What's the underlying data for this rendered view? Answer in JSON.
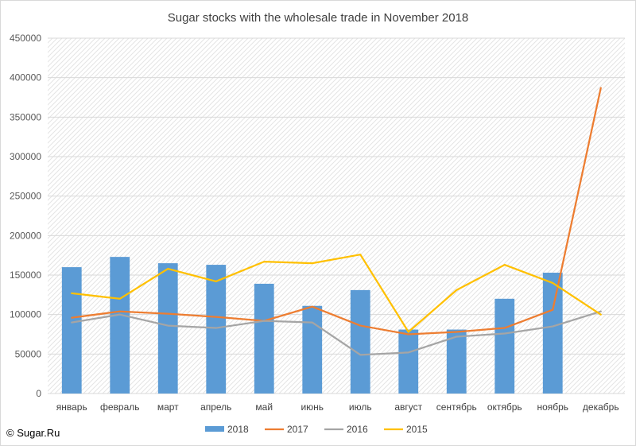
{
  "chart_data": {
    "type": "bar",
    "title": "Sugar stocks with the wholesale trade in November 2018",
    "categories": [
      "январь",
      "февраль",
      "март",
      "апрель",
      "май",
      "июнь",
      "июль",
      "август",
      "сентябрь",
      "октябрь",
      "ноябрь",
      "декабрь"
    ],
    "y_ticks": [
      "0",
      "50000",
      "100000",
      "150000",
      "200000",
      "250000",
      "300000",
      "350000",
      "400000",
      "450000"
    ],
    "ylim": [
      0,
      450000
    ],
    "grid": "hatched",
    "legend_position": "bottom",
    "series": [
      {
        "name": "2018",
        "type": "bar",
        "color": "#5b9bd5",
        "values": [
          160000,
          173000,
          165000,
          163000,
          139000,
          111000,
          131000,
          81000,
          81000,
          120000,
          153000,
          null
        ]
      },
      {
        "name": "2017",
        "type": "line",
        "color": "#ed7d31",
        "values": [
          96000,
          104000,
          101000,
          97000,
          92000,
          110000,
          86000,
          75000,
          78000,
          83000,
          106000,
          387000
        ]
      },
      {
        "name": "2016",
        "type": "line",
        "color": "#a5a5a5",
        "values": [
          90000,
          100000,
          86000,
          83000,
          92000,
          90000,
          49000,
          52000,
          72000,
          76000,
          85000,
          104000
        ]
      },
      {
        "name": "2015",
        "type": "line",
        "color": "#ffc000",
        "values": [
          127000,
          120000,
          158000,
          142000,
          167000,
          165000,
          176000,
          78000,
          131000,
          163000,
          140000,
          100000
        ]
      }
    ]
  },
  "copyright": "© Sugar.Ru"
}
